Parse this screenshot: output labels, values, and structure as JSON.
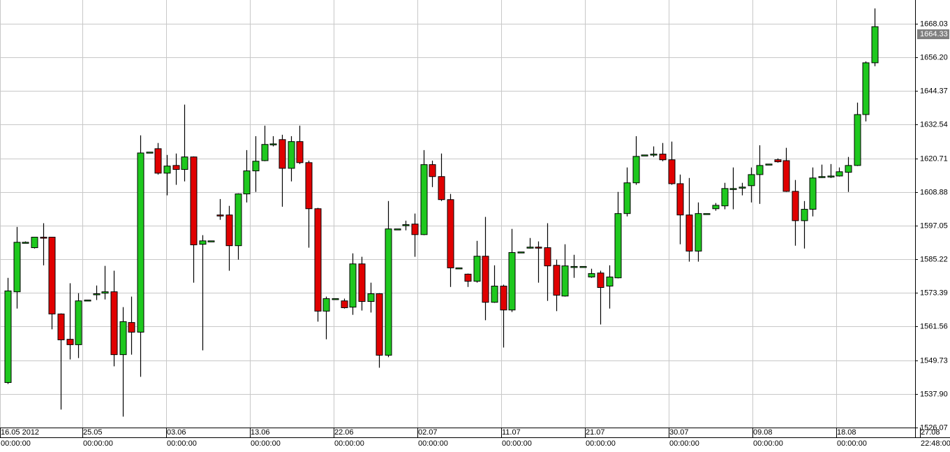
{
  "chart_data": {
    "type": "candlestick",
    "open": [
      1541.9,
      1573.8,
      1591.2,
      1589.3,
      1593.0,
      1593.0,
      1566.0,
      1557.1,
      1555.2,
      1570.6,
      1572.8,
      1573.3,
      1573.8,
      1551.7,
      1563.0,
      1559.6,
      1622.9,
      1624.1,
      1615.5,
      1618.2,
      1616.8,
      1621.2,
      1590.5,
      1591.7,
      1600.8,
      1600.8,
      1590.0,
      1608.2,
      1616.3,
      1619.9,
      1625.6,
      1627.3,
      1617.2,
      1626.6,
      1619.2,
      1603.0,
      1567.0,
      1571.4,
      1570.6,
      1568.4,
      1583.6,
      1570.4,
      1573.1,
      1551.5,
      1595.9,
      1597.4,
      1597.6,
      1593.9,
      1618.5,
      1614.3,
      1606.2,
      1582.2,
      1580.0,
      1577.5,
      1586.3,
      1570.1,
      1575.8,
      1567.4,
      1587.8,
      1589.5,
      1589.5,
      1589.3,
      1583.1,
      1572.3,
      1582.7,
      1582.7,
      1579.0,
      1580.4,
      1575.8,
      1578.7,
      1601.3,
      1612.1,
      1621.9,
      1621.9,
      1622.2,
      1620.2,
      1611.8,
      1600.8,
      1588.1,
      1601.3,
      1603.0,
      1604.0,
      1609.9,
      1610.4,
      1611.1,
      1615.0,
      1618.7,
      1620.2,
      1619.9,
      1609.1,
      1598.8,
      1602.8,
      1614.3,
      1614.5,
      1614.5,
      1615.8,
      1618.2,
      1636.1,
      1654.3
    ],
    "high": [
      1578.7,
      1596.6,
      1591.5,
      1593.0,
      1597.9,
      1593.0,
      1566.2,
      1576.8,
      1573.3,
      1570.9,
      1576.0,
      1582.9,
      1581.2,
      1568.4,
      1572.1,
      1628.8,
      1622.9,
      1626.1,
      1621.9,
      1622.4,
      1639.6,
      1621.4,
      1593.7,
      1591.7,
      1606.4,
      1604.0,
      1608.4,
      1623.6,
      1628.5,
      1632.2,
      1628.5,
      1629.0,
      1628.5,
      1632.2,
      1619.9,
      1603.3,
      1572.1,
      1571.4,
      1571.4,
      1587.3,
      1586.1,
      1577.0,
      1573.3,
      1605.7,
      1595.9,
      1598.8,
      1601.3,
      1623.6,
      1619.9,
      1622.4,
      1608.2,
      1582.2,
      1580.2,
      1591.7,
      1600.1,
      1583.1,
      1576.3,
      1595.9,
      1587.8,
      1592.7,
      1591.5,
      1597.9,
      1585.1,
      1590.5,
      1586.8,
      1582.7,
      1581.9,
      1581.2,
      1583.1,
      1608.9,
      1617.5,
      1628.5,
      1621.9,
      1624.9,
      1626.1,
      1626.6,
      1615.0,
      1613.8,
      1605.2,
      1601.3,
      1605.0,
      1612.1,
      1617.5,
      1612.1,
      1617.5,
      1625.3,
      1618.7,
      1620.7,
      1624.4,
      1613.1,
      1605.7,
      1617.5,
      1618.5,
      1618.7,
      1617.5,
      1621.2,
      1640.3,
      1654.8,
      1673.4
    ],
    "low": [
      1541.4,
      1567.9,
      1591.0,
      1589.0,
      1583.1,
      1560.6,
      1532.4,
      1550.0,
      1550.5,
      1570.6,
      1570.9,
      1571.1,
      1547.6,
      1529.9,
      1551.7,
      1543.9,
      1622.6,
      1615.0,
      1607.7,
      1611.4,
      1612.6,
      1577.0,
      1553.2,
      1591.5,
      1599.1,
      1581.2,
      1585.1,
      1605.2,
      1608.9,
      1619.7,
      1624.9,
      1603.7,
      1612.6,
      1618.7,
      1589.3,
      1563.3,
      1557.1,
      1571.1,
      1567.9,
      1565.7,
      1567.2,
      1566.5,
      1547.1,
      1550.8,
      1595.7,
      1595.4,
      1586.1,
      1593.7,
      1610.6,
      1605.7,
      1575.5,
      1581.9,
      1575.5,
      1577.0,
      1563.8,
      1569.9,
      1554.2,
      1566.7,
      1587.6,
      1589.0,
      1577.0,
      1570.6,
      1567.0,
      1572.1,
      1578.7,
      1582.4,
      1578.7,
      1562.3,
      1567.9,
      1578.5,
      1600.3,
      1611.4,
      1621.7,
      1621.2,
      1619.7,
      1611.4,
      1590.5,
      1584.4,
      1584.4,
      1601.1,
      1602.3,
      1602.8,
      1602.8,
      1607.7,
      1605.2,
      1604.7,
      1618.5,
      1619.2,
      1608.9,
      1590.0,
      1589.0,
      1600.3,
      1613.8,
      1613.8,
      1614.3,
      1608.9,
      1618.0,
      1633.7,
      1653.1
    ],
    "close": [
      1574.1,
      1591.2,
      1591.2,
      1593.0,
      1592.7,
      1566.0,
      1556.9,
      1555.2,
      1570.6,
      1570.9,
      1573.1,
      1573.8,
      1551.7,
      1563.3,
      1559.6,
      1622.6,
      1622.9,
      1615.5,
      1618.0,
      1616.8,
      1621.2,
      1590.3,
      1591.7,
      1591.7,
      1600.6,
      1590.0,
      1608.2,
      1616.3,
      1619.7,
      1625.6,
      1625.8,
      1617.2,
      1626.6,
      1619.2,
      1603.0,
      1567.0,
      1571.4,
      1571.4,
      1568.2,
      1583.6,
      1570.4,
      1573.1,
      1551.5,
      1595.9,
      1595.9,
      1597.4,
      1593.9,
      1618.5,
      1614.3,
      1606.2,
      1582.2,
      1582.2,
      1577.5,
      1586.3,
      1570.1,
      1575.8,
      1567.4,
      1587.6,
      1587.8,
      1589.5,
      1589.3,
      1582.9,
      1572.6,
      1582.9,
      1582.7,
      1582.7,
      1580.2,
      1575.3,
      1579.0,
      1601.3,
      1612.1,
      1621.4,
      1621.9,
      1622.2,
      1620.2,
      1611.8,
      1600.8,
      1588.1,
      1601.3,
      1601.3,
      1604.2,
      1610.1,
      1610.1,
      1610.6,
      1615.0,
      1618.2,
      1618.7,
      1619.5,
      1609.1,
      1598.8,
      1602.8,
      1613.8,
      1614.3,
      1614.5,
      1616.0,
      1618.2,
      1636.1,
      1654.3,
      1667.0
    ],
    "up_color": "#1ec81e",
    "down_color": "#e00000",
    "ylim": [
      1526.07,
      1676.37
    ],
    "yticks": [
      1526.07,
      {
        "value": 1537.9,
        "label": "1537.90"
      },
      1549.73,
      1561.56,
      1573.39,
      1585.22,
      1597.05,
      1608.88,
      1620.71,
      1632.54,
      1644.37,
      {
        "value": 1656.2,
        "label": "1656.20"
      },
      1668.03
    ],
    "grid": true,
    "last_price": 1664.33,
    "x_labels": [
      {
        "date": "16.05 2012",
        "time": "00:00:00"
      },
      {
        "date": "25.05",
        "time": "00:00:00"
      },
      {
        "date": "03.06",
        "time": "00:00:00"
      },
      {
        "date": "13.06",
        "time": "00:00:00"
      },
      {
        "date": "22.06",
        "time": "00:00:00"
      },
      {
        "date": "02.07",
        "time": "00:00:00"
      },
      {
        "date": "11.07",
        "time": "00:00:00"
      },
      {
        "date": "21.07",
        "time": "00:00:00"
      },
      {
        "date": "30.07",
        "time": "00:00:00"
      },
      {
        "date": "09.08",
        "time": "00:00:00"
      },
      {
        "date": "18.08",
        "time": "00:00:00"
      },
      {
        "date": "27.08",
        "time": "22:48:00"
      }
    ]
  }
}
